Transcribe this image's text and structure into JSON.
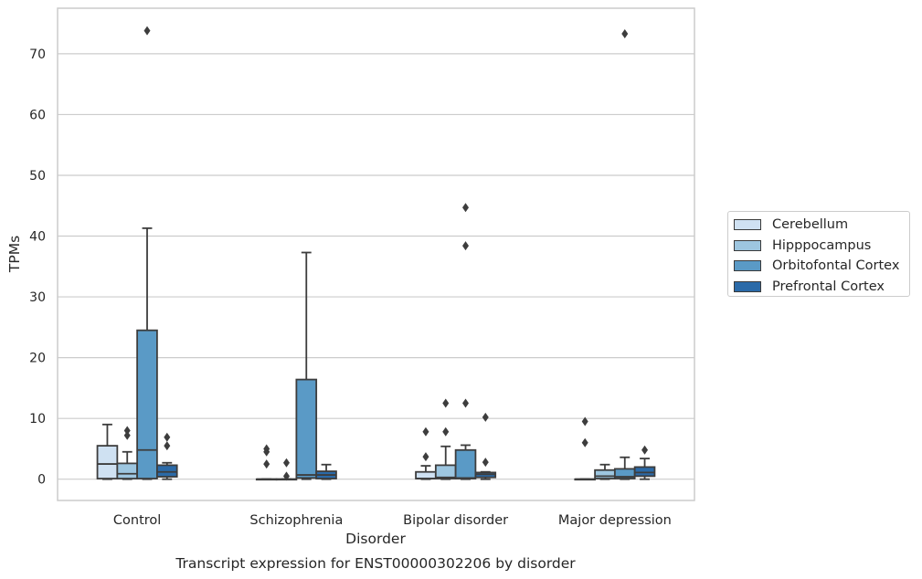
{
  "chart_data": {
    "type": "box",
    "title": "",
    "caption": "Transcript expression for ENST00000302206 by disorder",
    "xlabel": "Disorder",
    "ylabel": "TPMs",
    "ylim": [
      -3.5,
      77.5
    ],
    "yticks": [
      0,
      10,
      20,
      30,
      40,
      50,
      60,
      70
    ],
    "grid": "horizontal",
    "legend_placement": "right",
    "categories": [
      "Control",
      "Schizophrenia",
      "Bipolar disorder",
      "Major depression"
    ],
    "series": [
      {
        "name": "Cerebellum",
        "color": "#cfe1f2",
        "boxes": [
          {
            "whisker_low": 0,
            "q1": 0.1,
            "median": 2.5,
            "q3": 5.5,
            "whisker_high": 9.0,
            "outliers": []
          },
          {
            "whisker_low": 0,
            "q1": 0,
            "median": 0,
            "q3": 0,
            "whisker_high": 0,
            "outliers": [
              2.5,
              4.5,
              5.0
            ]
          },
          {
            "whisker_low": 0,
            "q1": 0.1,
            "median": 0.1,
            "q3": 1.2,
            "whisker_high": 2.2,
            "outliers": [
              3.7,
              7.8
            ]
          },
          {
            "whisker_low": 0,
            "q1": 0,
            "median": 0,
            "q3": 0,
            "whisker_high": 0,
            "outliers": [
              6.0,
              9.5
            ]
          }
        ]
      },
      {
        "name": "Hipppocampus",
        "color": "#9dc6e0",
        "boxes": [
          {
            "whisker_low": 0,
            "q1": 0.1,
            "median": 0.9,
            "q3": 2.6,
            "whisker_high": 4.5,
            "outliers": [
              7.2,
              8.0
            ]
          },
          {
            "whisker_low": 0,
            "q1": 0,
            "median": 0,
            "q3": 0,
            "whisker_high": 0,
            "outliers": [
              0.5,
              2.7
            ]
          },
          {
            "whisker_low": 0,
            "q1": 0.1,
            "median": 0.3,
            "q3": 2.3,
            "whisker_high": 5.4,
            "outliers": [
              7.8,
              12.5
            ]
          },
          {
            "whisker_low": 0,
            "q1": 0.1,
            "median": 0.5,
            "q3": 1.5,
            "whisker_high": 2.4,
            "outliers": []
          }
        ]
      },
      {
        "name": "Orbitofontal Cortex",
        "color": "#5a9ac6",
        "boxes": [
          {
            "whisker_low": 0,
            "q1": 0.1,
            "median": 4.8,
            "q3": 24.5,
            "whisker_high": 41.3,
            "outliers": [
              73.8
            ]
          },
          {
            "whisker_low": 0,
            "q1": 0.2,
            "median": 0.7,
            "q3": 16.4,
            "whisker_high": 37.3,
            "outliers": []
          },
          {
            "whisker_low": 0,
            "q1": 0.1,
            "median": 0.2,
            "q3": 4.8,
            "whisker_high": 5.6,
            "outliers": [
              12.5,
              38.4,
              44.7
            ]
          },
          {
            "whisker_low": 0,
            "q1": 0.1,
            "median": 0.4,
            "q3": 1.7,
            "whisker_high": 3.6,
            "outliers": [
              73.3
            ]
          }
        ]
      },
      {
        "name": "Prefrontal Cortex",
        "color": "#2b6aa8",
        "boxes": [
          {
            "whisker_low": 0,
            "q1": 0.4,
            "median": 1.2,
            "q3": 2.3,
            "whisker_high": 2.7,
            "outliers": [
              5.5,
              6.9
            ]
          },
          {
            "whisker_low": 0,
            "q1": 0.1,
            "median": 0.7,
            "q3": 1.3,
            "whisker_high": 2.4,
            "outliers": []
          },
          {
            "whisker_low": 0,
            "q1": 0.3,
            "median": 0.8,
            "q3": 1.1,
            "whisker_high": 1.2,
            "outliers": [
              2.8,
              10.2
            ]
          },
          {
            "whisker_low": 0,
            "q1": 0.5,
            "median": 1.1,
            "q3": 2.0,
            "whisker_high": 3.4,
            "outliers": [
              4.8
            ]
          }
        ]
      }
    ]
  }
}
